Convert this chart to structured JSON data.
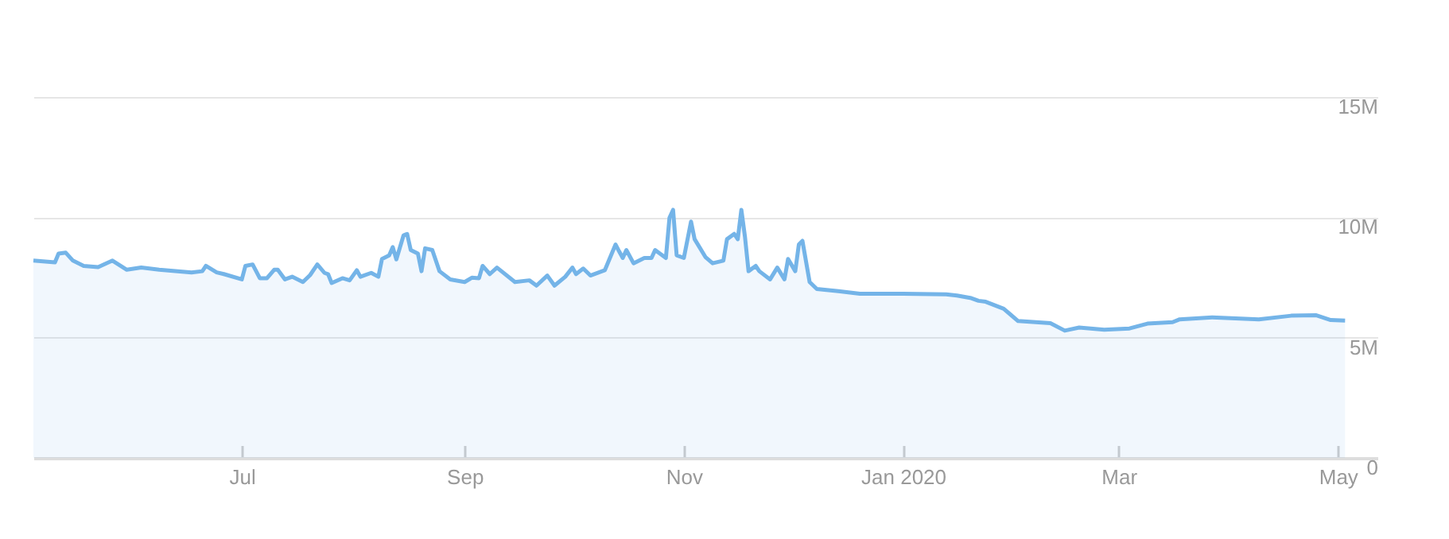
{
  "chart_data": {
    "type": "area",
    "x": [
      "2019-05-04",
      "2019-05-10",
      "2019-05-11",
      "2019-05-13",
      "2019-05-15",
      "2019-05-18",
      "2019-05-22",
      "2019-05-26",
      "2019-05-30",
      "2019-06-03",
      "2019-06-08",
      "2019-06-17",
      "2019-06-20",
      "2019-06-21",
      "2019-06-24",
      "2019-06-26",
      "2019-07-01",
      "2019-07-02",
      "2019-07-04",
      "2019-07-06",
      "2019-07-08",
      "2019-07-10",
      "2019-07-11",
      "2019-07-13",
      "2019-07-15",
      "2019-07-18",
      "2019-07-20",
      "2019-07-22",
      "2019-07-24",
      "2019-07-25",
      "2019-07-26",
      "2019-07-29",
      "2019-07-31",
      "2019-08-02",
      "2019-08-03",
      "2019-08-06",
      "2019-08-08",
      "2019-08-09",
      "2019-08-11",
      "2019-08-12",
      "2019-08-13",
      "2019-08-15",
      "2019-08-16",
      "2019-08-17",
      "2019-08-19",
      "2019-08-20",
      "2019-08-21",
      "2019-08-23",
      "2019-08-25",
      "2019-08-28",
      "2019-09-01",
      "2019-09-03",
      "2019-09-05",
      "2019-09-06",
      "2019-09-08",
      "2019-09-10",
      "2019-09-15",
      "2019-09-19",
      "2019-09-21",
      "2019-09-24",
      "2019-09-26",
      "2019-09-29",
      "2019-10-01",
      "2019-10-02",
      "2019-10-04",
      "2019-10-06",
      "2019-10-10",
      "2019-10-13",
      "2019-10-14",
      "2019-10-15",
      "2019-10-16",
      "2019-10-18",
      "2019-10-21",
      "2019-10-23",
      "2019-10-24",
      "2019-10-27",
      "2019-10-28",
      "2019-10-29",
      "2019-10-30",
      "2019-11-01",
      "2019-11-03",
      "2019-11-04",
      "2019-11-07",
      "2019-11-09",
      "2019-11-12",
      "2019-11-13",
      "2019-11-15",
      "2019-11-16",
      "2019-11-17",
      "2019-11-18",
      "2019-11-19",
      "2019-11-21",
      "2019-11-22",
      "2019-11-25",
      "2019-11-27",
      "2019-11-29",
      "2019-11-30",
      "2019-12-02",
      "2019-12-03",
      "2019-12-04",
      "2019-12-06",
      "2019-12-08",
      "2019-12-14",
      "2019-12-20",
      "2020-01-01",
      "2020-01-13",
      "2020-01-16",
      "2020-01-20",
      "2020-01-22",
      "2020-01-24",
      "2020-01-29",
      "2020-02-02",
      "2020-02-11",
      "2020-02-15",
      "2020-02-19",
      "2020-02-26",
      "2020-03-04",
      "2020-03-09",
      "2020-03-16",
      "2020-03-18",
      "2020-03-27",
      "2020-04-09",
      "2020-04-18",
      "2020-04-25",
      "2020-04-29",
      "2020-05-03"
    ],
    "values": [
      8200000,
      8130000,
      8490000,
      8530000,
      8200000,
      7980000,
      7930000,
      8200000,
      7820000,
      7910000,
      7820000,
      7710000,
      7760000,
      7980000,
      7710000,
      7640000,
      7420000,
      7980000,
      8040000,
      7470000,
      7470000,
      7820000,
      7820000,
      7420000,
      7530000,
      7310000,
      7600000,
      8040000,
      7690000,
      7640000,
      7270000,
      7470000,
      7380000,
      7800000,
      7530000,
      7690000,
      7530000,
      8270000,
      8420000,
      8760000,
      8250000,
      9250000,
      9310000,
      8640000,
      8490000,
      7760000,
      8710000,
      8640000,
      7760000,
      7420000,
      7310000,
      7490000,
      7470000,
      7980000,
      7640000,
      7910000,
      7310000,
      7380000,
      7160000,
      7580000,
      7160000,
      7530000,
      7910000,
      7640000,
      7870000,
      7580000,
      7800000,
      8870000,
      8580000,
      8310000,
      8640000,
      8090000,
      8310000,
      8310000,
      8640000,
      8310000,
      9980000,
      10310000,
      8420000,
      8310000,
      9820000,
      9090000,
      8350000,
      8090000,
      8200000,
      9090000,
      9310000,
      9090000,
      10310000,
      9200000,
      7760000,
      7980000,
      7760000,
      7420000,
      7910000,
      7420000,
      8270000,
      7760000,
      8870000,
      9020000,
      7310000,
      7020000,
      6930000,
      6820000,
      6820000,
      6800000,
      6750000,
      6640000,
      6530000,
      6490000,
      6200000,
      5690000,
      5600000,
      5290000,
      5420000,
      5330000,
      5380000,
      5580000,
      5640000,
      5760000,
      5840000,
      5760000,
      5910000,
      5930000,
      5730000,
      5710000
    ],
    "color": "#74b4e8",
    "xlim": [
      "2019-05-04",
      "2020-05-12"
    ],
    "xticks": [
      {
        "value": "2019-07-01",
        "label": "Jul"
      },
      {
        "value": "2019-09-01",
        "label": "Sep"
      },
      {
        "value": "2019-11-01",
        "label": "Nov"
      },
      {
        "value": "2020-01-01",
        "label": "Jan 2020"
      },
      {
        "value": "2020-03-01",
        "label": "Mar"
      },
      {
        "value": "2020-05-01",
        "label": "May"
      }
    ],
    "ylim": [
      0,
      15000000
    ],
    "yticks": [
      0,
      {
        "value": 5000000,
        "label": "5M"
      },
      {
        "value": 10000000,
        "label": "10M"
      },
      {
        "value": 15000000,
        "label": "15M"
      }
    ],
    "grid": "y"
  }
}
